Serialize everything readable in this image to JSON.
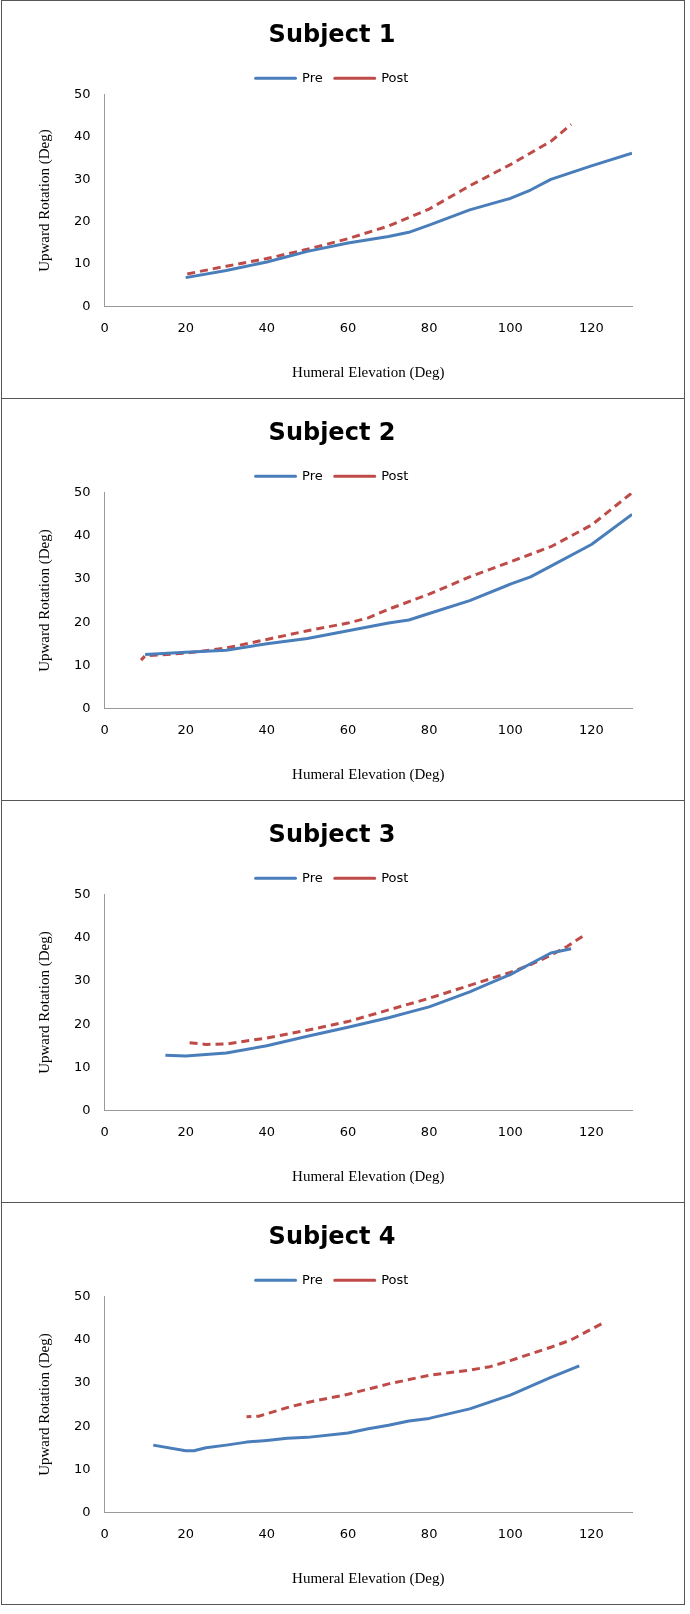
{
  "chart_data": [
    {
      "type": "line",
      "title": "Subject 1",
      "xlabel": "Humeral Elevation (Deg)",
      "ylabel": "Upward Rotation (Deg)",
      "xlim": [
        0,
        130
      ],
      "xticks": [
        0,
        20,
        40,
        60,
        80,
        100,
        120
      ],
      "ylim": [
        0,
        50
      ],
      "yticks": [
        0,
        10,
        20,
        30,
        40,
        50
      ],
      "grid": false,
      "legend": "top",
      "marker": "none",
      "series": [
        {
          "name": "Pre",
          "color": "#4a7ebb",
          "line_style": "solid",
          "x": [
            20,
            30,
            40,
            50,
            60,
            70,
            75,
            80,
            90,
            100,
            105,
            110,
            120,
            130
          ],
          "values": [
            6.8,
            8.5,
            10.5,
            13,
            15,
            16.5,
            17.5,
            19.2,
            22.8,
            25.5,
            27.5,
            30,
            33.2,
            36.2
          ]
        },
        {
          "name": "Post",
          "color": "#be4b48",
          "line_style": "dashed",
          "x": [
            20,
            30,
            40,
            50,
            60,
            70,
            80,
            90,
            100,
            110,
            115
          ],
          "values": [
            7.6,
            9.5,
            11.3,
            13.5,
            16,
            19,
            23,
            28.5,
            33.5,
            39,
            43
          ]
        }
      ]
    },
    {
      "type": "line",
      "title": "Subject 2",
      "xlabel": "Humeral Elevation (Deg)",
      "ylabel": "Upward Rotation (Deg)",
      "xlim": [
        0,
        130
      ],
      "xticks": [
        0,
        20,
        40,
        60,
        80,
        100,
        120
      ],
      "ylim": [
        0,
        50
      ],
      "yticks": [
        0,
        10,
        20,
        30,
        40,
        50
      ],
      "grid": false,
      "legend": "top",
      "marker": "none",
      "series": [
        {
          "name": "Pre",
          "color": "#4a7ebb",
          "line_style": "solid",
          "x": [
            10,
            20,
            30,
            40,
            50,
            60,
            70,
            75,
            80,
            90,
            100,
            105,
            110,
            120,
            130
          ],
          "values": [
            12.5,
            13,
            13.5,
            15,
            16.2,
            18,
            19.8,
            20.5,
            22,
            25,
            28.8,
            30.5,
            33,
            38,
            45
          ]
        },
        {
          "name": "Post",
          "color": "#be4b48",
          "line_style": "dashed",
          "x": [
            9,
            10,
            20,
            30,
            40,
            50,
            60,
            65,
            70,
            80,
            90,
            100,
            110,
            120,
            130
          ],
          "values": [
            11.2,
            12.2,
            12.8,
            14,
            16,
            18,
            19.8,
            21,
            23,
            26.5,
            30.5,
            34,
            37.5,
            42.5,
            50
          ]
        }
      ]
    },
    {
      "type": "line",
      "title": "Subject 3",
      "xlabel": "Humeral Elevation (Deg)",
      "ylabel": "Upward Rotation (Deg)",
      "xlim": [
        0,
        130
      ],
      "xticks": [
        0,
        20,
        40,
        60,
        80,
        100,
        120
      ],
      "ylim": [
        0,
        50
      ],
      "yticks": [
        0,
        10,
        20,
        30,
        40,
        50
      ],
      "grid": false,
      "legend": "top",
      "marker": "none",
      "series": [
        {
          "name": "Pre",
          "color": "#4a7ebb",
          "line_style": "solid",
          "x": [
            15,
            20,
            30,
            40,
            50,
            60,
            70,
            80,
            90,
            95,
            100,
            105,
            110,
            115
          ],
          "values": [
            12.8,
            12.6,
            13.3,
            15,
            17.2,
            19.3,
            21.5,
            24,
            27.5,
            29.5,
            31.5,
            34,
            36.5,
            37.5
          ]
        },
        {
          "name": "Post",
          "color": "#be4b48",
          "line_style": "dashed",
          "x": [
            20,
            25,
            30,
            40,
            50,
            60,
            70,
            80,
            90,
            100,
            105,
            110,
            114,
            118
          ],
          "values": [
            15.8,
            15.3,
            15.4,
            16.8,
            18.6,
            20.6,
            23.3,
            26,
            29,
            32,
            33.8,
            36,
            38,
            40.5
          ]
        }
      ]
    },
    {
      "type": "line",
      "title": "Subject 4",
      "xlabel": "Humeral Elevation (Deg)",
      "ylabel": "Upward Rotation (Deg)",
      "xlim": [
        0,
        130
      ],
      "xticks": [
        0,
        20,
        40,
        60,
        80,
        100,
        120
      ],
      "ylim": [
        0,
        50
      ],
      "yticks": [
        0,
        10,
        20,
        30,
        40,
        50
      ],
      "grid": false,
      "legend": "top",
      "marker": "none",
      "series": [
        {
          "name": "Pre",
          "color": "#4a7ebb",
          "line_style": "solid",
          "x": [
            12,
            20,
            22,
            25,
            30,
            35,
            40,
            45,
            50,
            60,
            65,
            70,
            75,
            80,
            90,
            100,
            110,
            117
          ],
          "values": [
            15.6,
            14.3,
            14.3,
            15,
            15.6,
            16.3,
            16.7,
            17.2,
            17.4,
            18.4,
            19.4,
            20.2,
            21.2,
            21.8,
            24,
            27.2,
            31.3,
            34
          ]
        },
        {
          "name": "Post",
          "color": "#be4b48",
          "line_style": "dashed",
          "x": [
            35,
            38,
            45,
            50,
            60,
            70,
            80,
            90,
            95,
            100,
            110,
            115,
            123
          ],
          "values": [
            22.2,
            22.3,
            24.3,
            25.5,
            27.4,
            29.8,
            31.8,
            33,
            33.8,
            35.2,
            38.3,
            40,
            44
          ]
        }
      ]
    }
  ]
}
